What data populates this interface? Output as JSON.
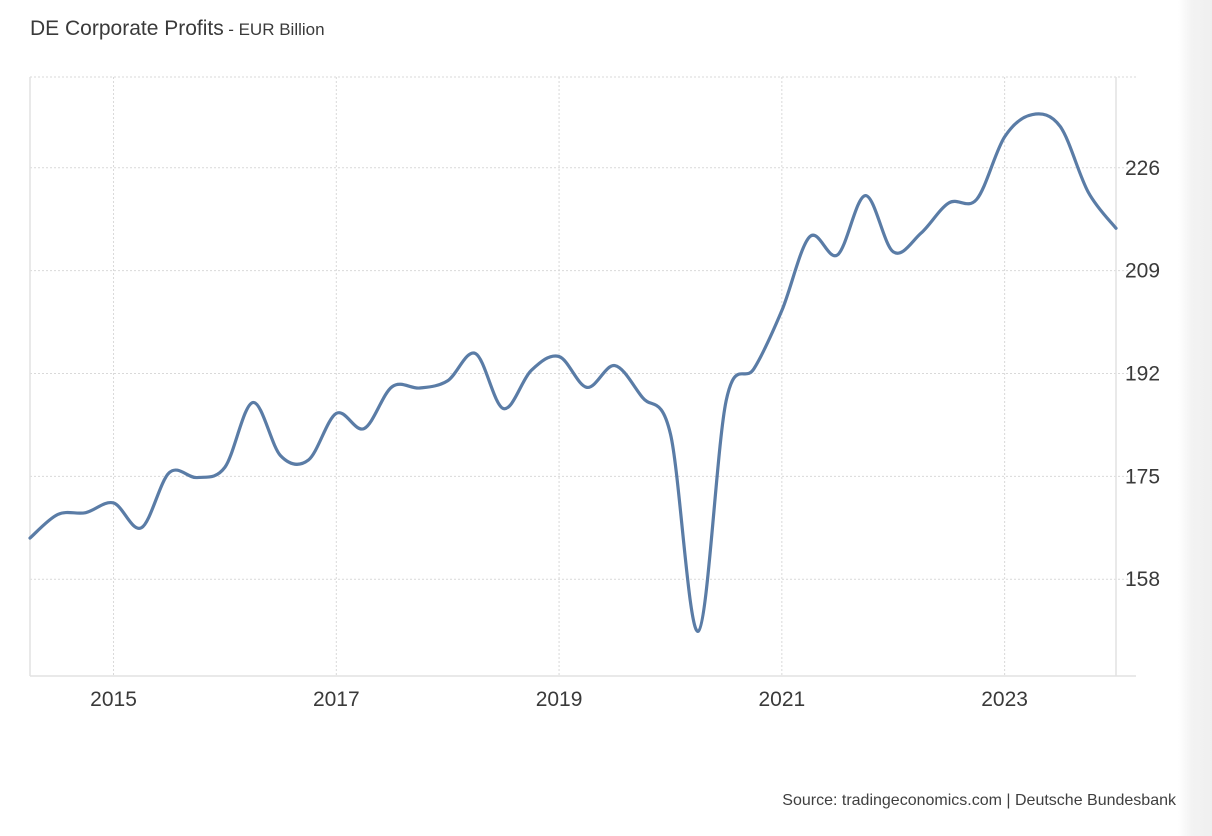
{
  "header": {
    "title": "DE Corporate Profits",
    "subtitle": "- EUR Billion"
  },
  "footer": {
    "source": "Source: tradingeconomics.com | Deutsche Bundesbank"
  },
  "colors": {
    "line": "#5a7ca6",
    "grid": "#d9d9d9",
    "axis": "#e2e2e2",
    "text": "#3a3a3a"
  },
  "chart_data": {
    "type": "line",
    "title": "DE Corporate Profits - EUR Billion",
    "xlabel": "",
    "ylabel": "",
    "grid": true,
    "y_axis_position": "right",
    "xlim": [
      2014.25,
      2024.0
    ],
    "ylim": [
      142,
      241
    ],
    "x_ticks": [
      2015,
      2017,
      2019,
      2021,
      2023
    ],
    "x_tick_labels": [
      "2015",
      "2017",
      "2019",
      "2021",
      "2023"
    ],
    "y_ticks": [
      158,
      175,
      192,
      209,
      226
    ],
    "y_tick_labels": [
      "158",
      "175",
      "192",
      "209",
      "226"
    ],
    "series": [
      {
        "name": "DE Corporate Profits",
        "x": [
          2014.25,
          2014.5,
          2014.75,
          2015.0,
          2015.25,
          2015.5,
          2015.75,
          2016.0,
          2016.25,
          2016.5,
          2016.75,
          2017.0,
          2017.25,
          2017.5,
          2017.75,
          2018.0,
          2018.25,
          2018.5,
          2018.75,
          2019.0,
          2019.25,
          2019.5,
          2019.75,
          2020.0,
          2020.25,
          2020.5,
          2020.75,
          2021.0,
          2021.25,
          2021.5,
          2021.75,
          2022.0,
          2022.25,
          2022.5,
          2022.75,
          2023.0,
          2023.25,
          2023.5,
          2023.75,
          2024.0
        ],
        "values": [
          164.8,
          168.7,
          169.0,
          170.6,
          166.5,
          175.6,
          174.8,
          176.5,
          187.2,
          178.4,
          177.7,
          185.4,
          182.9,
          189.8,
          189.6,
          190.8,
          195.3,
          186.2,
          192.5,
          194.8,
          189.7,
          193.3,
          188.0,
          182.0,
          149.4,
          187.5,
          192.8,
          202.4,
          214.6,
          211.6,
          221.4,
          212.1,
          215.2,
          220.2,
          220.8,
          231.1,
          234.8,
          232.8,
          222.0,
          216.0
        ]
      }
    ]
  }
}
